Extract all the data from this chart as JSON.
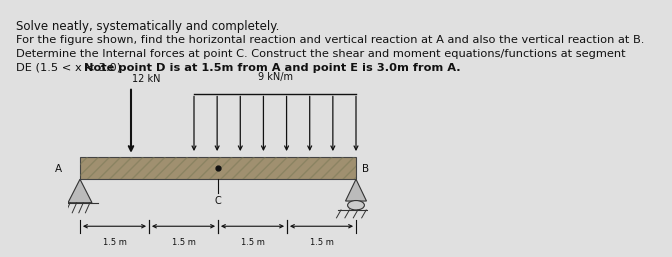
{
  "title_line1": "Solve neatly, systematically and completely.",
  "body_line1": "For the figure shown, find the horizontal reaction and vertical reaction at A and also the vertical reaction at B.",
  "body_line2": "Determine the Internal forces at point C. Construct the shear and moment equations/functions at segment",
  "body_line3_normal": "DE (1.5 < x < 3.0).",
  "body_line3_bold": "Note point D is at 1.5m from A and point E is 3.0m from A.",
  "diagram_bg": "#9aa8bc",
  "fig_bg": "#e0e0e0",
  "text_color": "#111111",
  "font_size_title": 8.5,
  "font_size_body": 8.2,
  "dim_labels": [
    "1.5 m",
    "1.5 m",
    "1.5 m",
    "1.5 m"
  ]
}
